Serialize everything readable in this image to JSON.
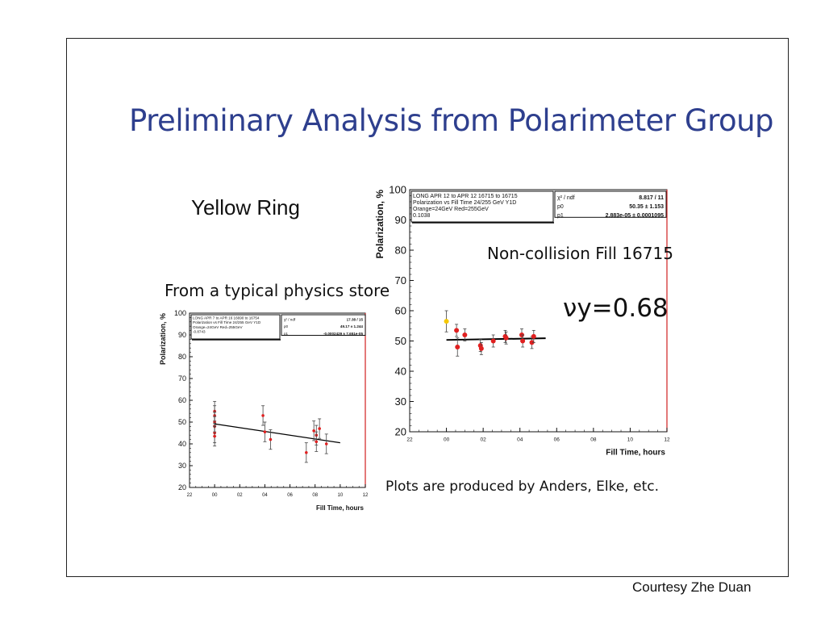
{
  "slide": {
    "title": "Preliminary Analysis from Polarimeter Group",
    "ring_label": "Yellow Ring",
    "store_label": "From a typical physics store",
    "noncollision_label": "Non-collision Fill 16715",
    "tune_label": "νy=0.68",
    "footer_note": "Plots are produced by Anders, Elke, etc.",
    "courtesy": "Courtesy Zhe Duan"
  },
  "chart_data": [
    {
      "type": "scatter",
      "name": "physics-store",
      "xlabel": "Fill Time, hours",
      "ylabel": "Polarization, %",
      "xlim": [
        -2,
        12
      ],
      "ylim": [
        20,
        100
      ],
      "x_tick_labels": [
        "22",
        "00",
        "02",
        "04",
        "06",
        "08",
        "10",
        "12"
      ],
      "y_ticks": [
        20,
        30,
        40,
        50,
        60,
        70,
        80,
        90,
        100
      ],
      "stats_box": {
        "lines": [
          "LONG APR 7 to APR 16 16690 to 16754",
          "Polarization vs Fill Time 24/255 GeV Y1D",
          "Orange=24GeV  Red=255GeV",
          "-0.8743"
        ],
        "rows": [
          [
            "χ² / ndf",
            "17.38 / 15"
          ],
          [
            "p0",
            "49.17 ± 1.244"
          ],
          [
            "p1",
            "-0.0002429 ± 7.651e-05"
          ]
        ]
      },
      "points": [
        {
          "x": 0.0,
          "y": 55,
          "err": 4.5
        },
        {
          "x": 0.0,
          "y": 53,
          "err": 4.5
        },
        {
          "x": 0.0,
          "y": 50,
          "err": 4.5
        },
        {
          "x": 0.0,
          "y": 48,
          "err": 4.5
        },
        {
          "x": 0.0,
          "y": 45,
          "err": 4.5
        },
        {
          "x": 0.0,
          "y": 43.5,
          "err": 4.5
        },
        {
          "x": 3.85,
          "y": 53,
          "err": 4.5
        },
        {
          "x": 4.0,
          "y": 45.5,
          "err": 4.5
        },
        {
          "x": 4.45,
          "y": 42,
          "err": 4.5
        },
        {
          "x": 7.3,
          "y": 36,
          "err": 4.5
        },
        {
          "x": 7.9,
          "y": 46,
          "err": 4.5
        },
        {
          "x": 8.1,
          "y": 44,
          "err": 4.5
        },
        {
          "x": 8.1,
          "y": 41,
          "err": 4.5
        },
        {
          "x": 8.35,
          "y": 47,
          "err": 4.5
        },
        {
          "x": 8.9,
          "y": 40,
          "err": 4.5
        }
      ],
      "fit": {
        "x": [
          0,
          10
        ],
        "y": [
          49.17,
          40.5
        ]
      }
    },
    {
      "type": "scatter",
      "name": "non-collision-fill",
      "xlabel": "Fill Time, hours",
      "ylabel": "Polarization, %",
      "xlim": [
        -2,
        12
      ],
      "ylim": [
        20,
        100
      ],
      "x_tick_labels": [
        "22",
        "00",
        "02",
        "04",
        "06",
        "08",
        "10",
        "12"
      ],
      "y_ticks": [
        20,
        30,
        40,
        50,
        60,
        70,
        80,
        90,
        100
      ],
      "stats_box": {
        "lines": [
          "LONG APR 12 to APR 12 16715 to 16715",
          "Polarization vs Fill Time 24/255 GeV Y1D",
          "Orange=24GeV  Red=255GeV",
          "0.1038"
        ],
        "rows": [
          [
            "χ² / ndf",
            "8.817 / 11"
          ],
          [
            "p0",
            "50.35 ± 1.153"
          ],
          [
            "p1",
            "2.883e-05 ± 0.0001095"
          ]
        ]
      },
      "points": [
        {
          "x": 0.0,
          "y": 56.5,
          "err": 3.5,
          "color": "#f5c800"
        },
        {
          "x": 0.55,
          "y": 53.5,
          "err": 2.0
        },
        {
          "x": 0.6,
          "y": 48,
          "err": 3.0
        },
        {
          "x": 1.0,
          "y": 52,
          "err": 2.0
        },
        {
          "x": 1.85,
          "y": 48.5,
          "err": 2.0
        },
        {
          "x": 1.9,
          "y": 47.5,
          "err": 2.0
        },
        {
          "x": 2.55,
          "y": 50,
          "err": 2.0
        },
        {
          "x": 3.2,
          "y": 51.5,
          "err": 2.0
        },
        {
          "x": 3.25,
          "y": 51,
          "err": 2.0
        },
        {
          "x": 4.1,
          "y": 52,
          "err": 2.0
        },
        {
          "x": 4.15,
          "y": 50,
          "err": 2.0
        },
        {
          "x": 4.65,
          "y": 49.5,
          "err": 2.0
        },
        {
          "x": 4.75,
          "y": 51.5,
          "err": 2.0
        }
      ],
      "fit": {
        "x": [
          0,
          5.4
        ],
        "y": [
          50.35,
          50.9
        ]
      }
    }
  ]
}
